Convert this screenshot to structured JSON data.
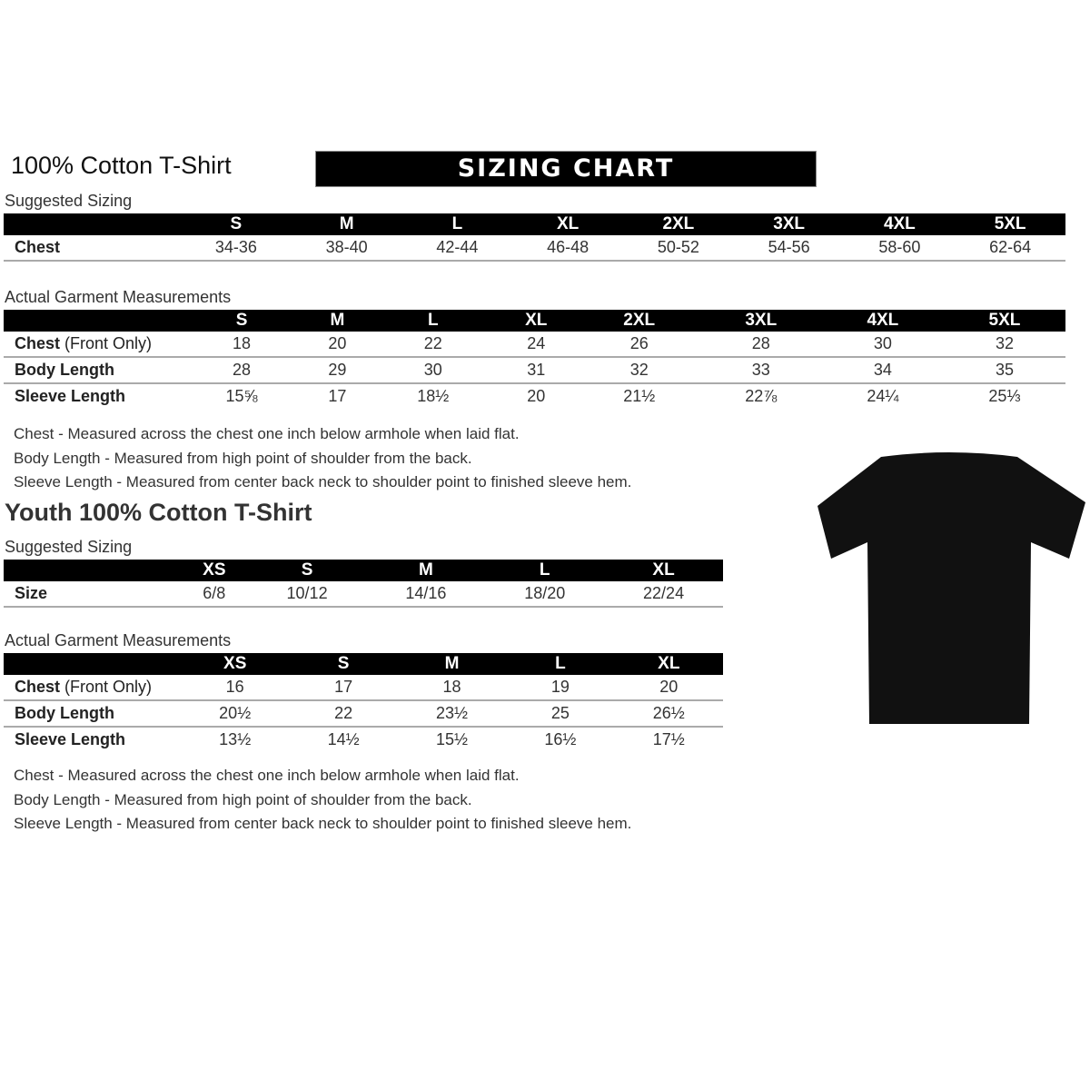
{
  "adult": {
    "title": "100% Cotton T-Shirt",
    "banner": "SIZING CHART",
    "suggested_label": "Suggested Sizing",
    "sizes": [
      "S",
      "M",
      "L",
      "XL",
      "2XL",
      "3XL",
      "4XL",
      "5XL"
    ],
    "suggested_rows": [
      {
        "label": "Chest",
        "values": [
          "34-36",
          "38-40",
          "42-44",
          "46-48",
          "50-52",
          "54-56",
          "58-60",
          "62-64"
        ]
      }
    ],
    "actual_label": "Actual Garment Measurements",
    "actual_rows": [
      {
        "label": "Chest",
        "label_suffix": "(Front Only)",
        "values": [
          "18",
          "20",
          "22",
          "24",
          "26",
          "28",
          "30",
          "32"
        ]
      },
      {
        "label": "Body Length",
        "label_suffix": "",
        "values": [
          "28",
          "29",
          "30",
          "31",
          "32",
          "33",
          "34",
          "35"
        ]
      },
      {
        "label": "Sleeve Length",
        "label_suffix": "",
        "values": [
          "15⅝",
          "17",
          "18½",
          "20",
          "21½",
          "22⅞",
          "24¼",
          "25⅓"
        ]
      }
    ],
    "notes": [
      "Chest - Measured across the chest one inch below armhole when laid flat.",
      "Body Length - Measured from high point of shoulder from the back.",
      "Sleeve Length - Measured from center back neck to shoulder point to finished sleeve hem."
    ]
  },
  "youth": {
    "title": "Youth 100% Cotton T-Shirt",
    "suggested_label": "Suggested Sizing",
    "sizes": [
      "XS",
      "S",
      "M",
      "L",
      "XL"
    ],
    "suggested_rows": [
      {
        "label": "Size",
        "values": [
          "6/8",
          "10/12",
          "14/16",
          "18/20",
          "22/24"
        ]
      }
    ],
    "actual_label": "Actual Garment Measurements",
    "actual_rows": [
      {
        "label": "Chest",
        "label_suffix": "(Front Only)",
        "values": [
          "16",
          "17",
          "18",
          "19",
          "20"
        ]
      },
      {
        "label": "Body Length",
        "label_suffix": "",
        "values": [
          "20½",
          "22",
          "23½",
          "25",
          "26½"
        ]
      },
      {
        "label": "Sleeve Length",
        "label_suffix": "",
        "values": [
          "13½",
          "14½",
          "15½",
          "16½",
          "17½"
        ]
      }
    ],
    "notes": [
      "Chest - Measured across the chest one inch below armhole when laid flat.",
      "Body Length - Measured from high point of shoulder from the back.",
      "Sleeve Length - Measured from center back neck to shoulder point to finished sleeve hem."
    ]
  },
  "image": {
    "icon": "tshirt-icon",
    "color": "#111111"
  }
}
